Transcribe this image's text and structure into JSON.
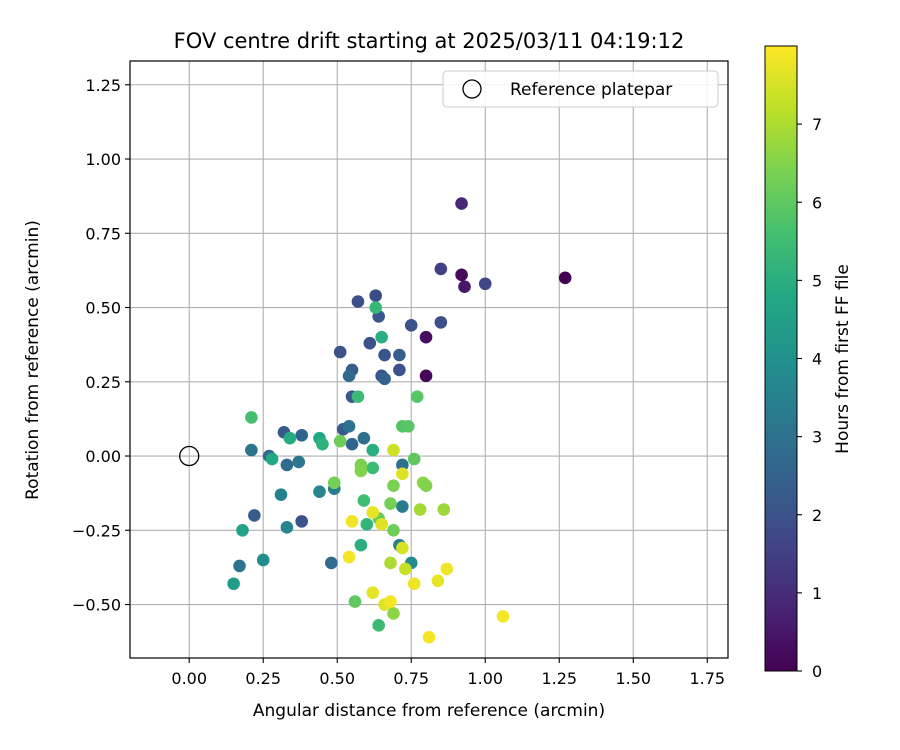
{
  "chart_data": {
    "type": "scatter",
    "title": "FOV centre drift starting at 2025/03/11 04:19:12",
    "xlabel": "Angular distance from reference (arcmin)",
    "ylabel": "Rotation from reference (arcmin)",
    "xlim": [
      -0.2,
      1.82
    ],
    "ylim": [
      -0.68,
      1.33
    ],
    "xticks": [
      0.0,
      0.25,
      0.5,
      0.75,
      1.0,
      1.25,
      1.5,
      1.75
    ],
    "xtick_labels": [
      "0.00",
      "0.25",
      "0.50",
      "0.75",
      "1.00",
      "1.25",
      "1.50",
      "1.75"
    ],
    "yticks": [
      -0.5,
      -0.25,
      0.0,
      0.25,
      0.5,
      0.75,
      1.0,
      1.25
    ],
    "ytick_labels": [
      "−0.50",
      "−0.25",
      "0.00",
      "0.25",
      "0.50",
      "0.75",
      "1.00",
      "1.25"
    ],
    "grid": true,
    "legend": {
      "position": "top-right",
      "entries": [
        "Reference platepar"
      ]
    },
    "colorbar": {
      "label": "Hours from first FF file",
      "colormap": "viridis",
      "range": [
        0,
        8
      ],
      "ticks": [
        0,
        1,
        2,
        3,
        4,
        5,
        6,
        7
      ]
    },
    "reference_point": {
      "x": 0.0,
      "y": 0.0
    },
    "points": [
      {
        "x": 1.27,
        "y": 0.6,
        "h": 0.0
      },
      {
        "x": 0.92,
        "y": 0.61,
        "h": 0.2
      },
      {
        "x": 0.93,
        "y": 0.57,
        "h": 0.5
      },
      {
        "x": 0.8,
        "y": 0.4,
        "h": 0.3
      },
      {
        "x": 0.8,
        "y": 0.27,
        "h": 0.1
      },
      {
        "x": 0.92,
        "y": 0.85,
        "h": 0.9
      },
      {
        "x": 0.85,
        "y": 0.63,
        "h": 1.5
      },
      {
        "x": 1.0,
        "y": 0.58,
        "h": 1.7
      },
      {
        "x": 0.85,
        "y": 0.45,
        "h": 1.9
      },
      {
        "x": 0.63,
        "y": 0.54,
        "h": 1.8
      },
      {
        "x": 0.57,
        "y": 0.52,
        "h": 1.9
      },
      {
        "x": 0.64,
        "y": 0.47,
        "h": 2.2
      },
      {
        "x": 0.75,
        "y": 0.44,
        "h": 2.0
      },
      {
        "x": 0.61,
        "y": 0.38,
        "h": 2.0
      },
      {
        "x": 0.51,
        "y": 0.35,
        "h": 2.0
      },
      {
        "x": 0.66,
        "y": 0.34,
        "h": 2.1
      },
      {
        "x": 0.71,
        "y": 0.34,
        "h": 2.4
      },
      {
        "x": 0.71,
        "y": 0.29,
        "h": 2.0
      },
      {
        "x": 0.55,
        "y": 0.29,
        "h": 2.3
      },
      {
        "x": 0.54,
        "y": 0.27,
        "h": 2.7
      },
      {
        "x": 0.65,
        "y": 0.27,
        "h": 2.0
      },
      {
        "x": 0.66,
        "y": 0.26,
        "h": 2.5
      },
      {
        "x": 0.55,
        "y": 0.2,
        "h": 2.2
      },
      {
        "x": 0.52,
        "y": 0.09,
        "h": 2.3
      },
      {
        "x": 0.54,
        "y": 0.1,
        "h": 3.0
      },
      {
        "x": 0.55,
        "y": 0.04,
        "h": 2.6
      },
      {
        "x": 0.59,
        "y": 0.06,
        "h": 2.9
      },
      {
        "x": 0.32,
        "y": 0.08,
        "h": 2.2
      },
      {
        "x": 0.38,
        "y": 0.07,
        "h": 2.6
      },
      {
        "x": 0.21,
        "y": 0.02,
        "h": 3.1
      },
      {
        "x": 0.27,
        "y": 0.0,
        "h": 2.7
      },
      {
        "x": 0.33,
        "y": -0.03,
        "h": 2.8
      },
      {
        "x": 0.37,
        "y": -0.02,
        "h": 3.1
      },
      {
        "x": 0.72,
        "y": -0.03,
        "h": 2.9
      },
      {
        "x": 0.22,
        "y": -0.2,
        "h": 2.3
      },
      {
        "x": 0.38,
        "y": -0.22,
        "h": 2.0
      },
      {
        "x": 0.17,
        "y": -0.37,
        "h": 3.0
      },
      {
        "x": 0.48,
        "y": -0.36,
        "h": 2.8
      },
      {
        "x": 0.31,
        "y": -0.13,
        "h": 3.5
      },
      {
        "x": 0.44,
        "y": -0.12,
        "h": 3.6
      },
      {
        "x": 0.49,
        "y": -0.11,
        "h": 3.4
      },
      {
        "x": 0.33,
        "y": -0.24,
        "h": 3.6
      },
      {
        "x": 0.25,
        "y": -0.35,
        "h": 3.9
      },
      {
        "x": 0.72,
        "y": -0.17,
        "h": 3.3
      },
      {
        "x": 0.75,
        "y": -0.36,
        "h": 3.8
      },
      {
        "x": 0.71,
        "y": -0.3,
        "h": 3.5
      },
      {
        "x": 0.15,
        "y": -0.43,
        "h": 4.4
      },
      {
        "x": 0.18,
        "y": -0.25,
        "h": 4.6
      },
      {
        "x": 0.28,
        "y": -0.01,
        "h": 4.8
      },
      {
        "x": 0.34,
        "y": 0.06,
        "h": 4.9
      },
      {
        "x": 0.44,
        "y": 0.06,
        "h": 4.8
      },
      {
        "x": 0.45,
        "y": 0.04,
        "h": 5.1
      },
      {
        "x": 0.62,
        "y": 0.02,
        "h": 5.0
      },
      {
        "x": 0.63,
        "y": 0.5,
        "h": 5.3
      },
      {
        "x": 0.65,
        "y": 0.4,
        "h": 5.0
      },
      {
        "x": 0.57,
        "y": 0.2,
        "h": 5.4
      },
      {
        "x": 0.21,
        "y": 0.13,
        "h": 5.6
      },
      {
        "x": 0.62,
        "y": -0.04,
        "h": 5.4
      },
      {
        "x": 0.59,
        "y": -0.15,
        "h": 5.5
      },
      {
        "x": 0.6,
        "y": -0.23,
        "h": 5.2
      },
      {
        "x": 0.58,
        "y": -0.3,
        "h": 5.0
      },
      {
        "x": 0.64,
        "y": -0.57,
        "h": 5.4
      },
      {
        "x": 0.56,
        "y": -0.49,
        "h": 6.0
      },
      {
        "x": 0.72,
        "y": 0.1,
        "h": 5.8
      },
      {
        "x": 0.74,
        "y": 0.1,
        "h": 5.9
      },
      {
        "x": 0.77,
        "y": 0.2,
        "h": 5.9
      },
      {
        "x": 0.51,
        "y": 0.05,
        "h": 6.2
      },
      {
        "x": 0.49,
        "y": -0.09,
        "h": 6.3
      },
      {
        "x": 0.58,
        "y": -0.03,
        "h": 6.4
      },
      {
        "x": 0.58,
        "y": -0.05,
        "h": 6.5
      },
      {
        "x": 0.64,
        "y": -0.21,
        "h": 6.1
      },
      {
        "x": 0.68,
        "y": -0.16,
        "h": 6.3
      },
      {
        "x": 0.69,
        "y": -0.1,
        "h": 6.4
      },
      {
        "x": 0.69,
        "y": -0.25,
        "h": 6.2
      },
      {
        "x": 0.76,
        "y": -0.01,
        "h": 6.0
      },
      {
        "x": 0.79,
        "y": -0.09,
        "h": 6.6
      },
      {
        "x": 0.8,
        "y": -0.1,
        "h": 6.5
      },
      {
        "x": 0.78,
        "y": -0.18,
        "h": 6.9
      },
      {
        "x": 0.86,
        "y": -0.18,
        "h": 6.8
      },
      {
        "x": 0.68,
        "y": -0.36,
        "h": 7.0
      },
      {
        "x": 0.69,
        "y": -0.53,
        "h": 6.6
      },
      {
        "x": 0.73,
        "y": -0.38,
        "h": 7.3
      },
      {
        "x": 0.69,
        "y": 0.02,
        "h": 7.4
      },
      {
        "x": 0.72,
        "y": -0.06,
        "h": 7.6
      },
      {
        "x": 0.62,
        "y": -0.19,
        "h": 7.7
      },
      {
        "x": 0.55,
        "y": -0.22,
        "h": 7.8
      },
      {
        "x": 0.65,
        "y": -0.23,
        "h": 7.6
      },
      {
        "x": 0.54,
        "y": -0.34,
        "h": 7.9
      },
      {
        "x": 0.72,
        "y": -0.31,
        "h": 7.5
      },
      {
        "x": 0.62,
        "y": -0.46,
        "h": 7.7
      },
      {
        "x": 0.66,
        "y": -0.5,
        "h": 7.6
      },
      {
        "x": 0.68,
        "y": -0.49,
        "h": 7.9
      },
      {
        "x": 0.76,
        "y": -0.43,
        "h": 7.8
      },
      {
        "x": 0.84,
        "y": -0.42,
        "h": 7.7
      },
      {
        "x": 0.87,
        "y": -0.38,
        "h": 7.8
      },
      {
        "x": 0.81,
        "y": -0.61,
        "h": 7.9
      },
      {
        "x": 1.06,
        "y": -0.54,
        "h": 7.9
      }
    ]
  }
}
